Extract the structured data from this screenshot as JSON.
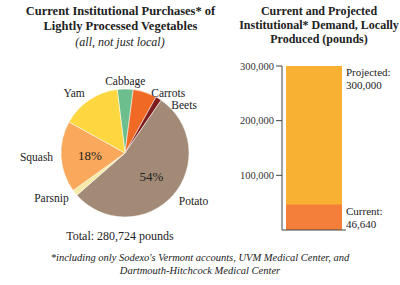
{
  "chart_data": [
    {
      "type": "pie",
      "title": "Current Institutional Purchases* of Lightly Processed Vegetables",
      "subtitle": "(all, not just local)",
      "categories": [
        "Cabbage",
        "Carrots",
        "Beets",
        "Potato",
        "Parsnip",
        "Squash",
        "Yam"
      ],
      "values": [
        4,
        6,
        1.5,
        54,
        1.5,
        18,
        15
      ],
      "value_labels": [
        null,
        null,
        null,
        "54%",
        null,
        "18%",
        null
      ],
      "data_labels": true,
      "colors": [
        "#6cbf8c",
        "#f06a25",
        "#7d1c1c",
        "#a28a76",
        "#f6eaa8",
        "#f9a85c",
        "#fcd740"
      ],
      "annotations": [
        "Total: 280,724 pounds"
      ]
    },
    {
      "type": "bar",
      "title": "Current and Projected Institutional* Demand, Locally Produced (pounds)",
      "categories": [
        null
      ],
      "series": [
        {
          "name": "Projected:",
          "values": [
            300000
          ],
          "value_labels": [
            "300,000"
          ],
          "color": "#f8b133"
        },
        {
          "name": "Current:",
          "values": [
            46640
          ],
          "value_labels": [
            "46,640"
          ],
          "color": "#f47f3a"
        }
      ],
      "ylim": [
        0,
        300000
      ],
      "yticks": [
        {
          "value": 100000,
          "label": "100,000"
        },
        {
          "value": 200000,
          "label": "200,000"
        },
        {
          "value": 300000,
          "label": "300,000"
        }
      ],
      "tick_labels": "y",
      "data_labels": true
    }
  ],
  "footnote": "*including only Sodexo's Vermont accounts, UVM Medical Center, and Dartmouth-Hitchcock Medical Center"
}
